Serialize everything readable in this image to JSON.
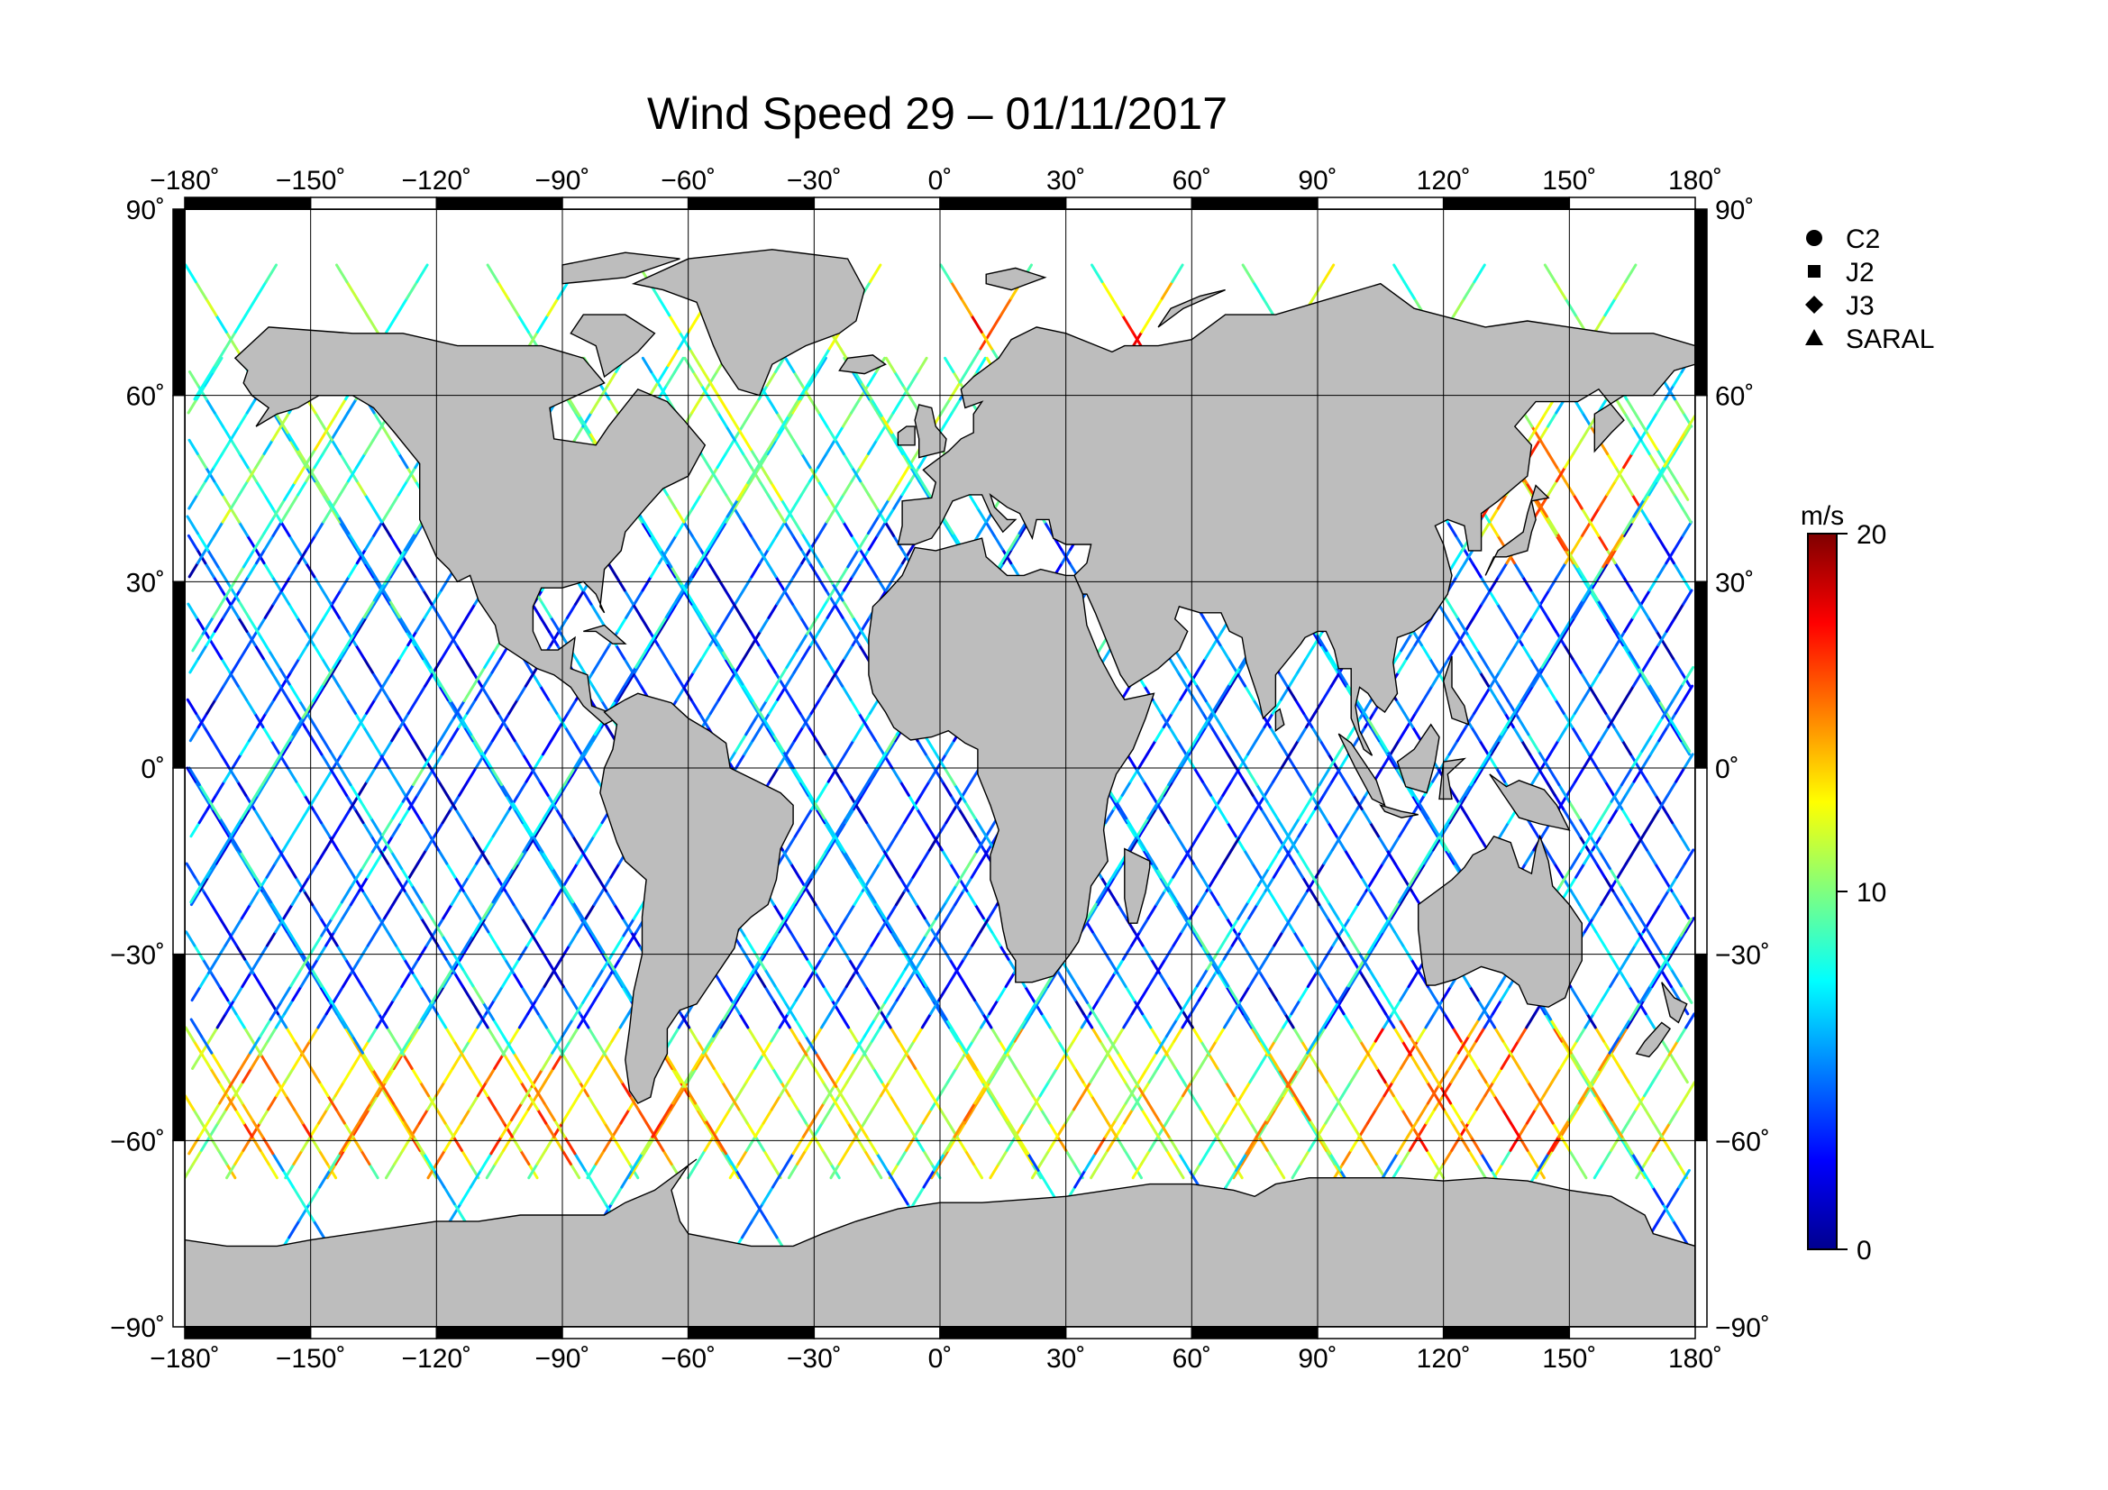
{
  "title": "Wind Speed 29 – 01/11/2017",
  "map": {
    "projection": "equirectangular",
    "lon_range": [
      -180,
      180
    ],
    "lat_range": [
      -90,
      90
    ],
    "lon_ticks": [
      -180,
      -150,
      -120,
      -90,
      -60,
      -30,
      0,
      30,
      60,
      90,
      120,
      150,
      180
    ],
    "lat_ticks": [
      90,
      60,
      30,
      0,
      -30,
      -60,
      -90
    ],
    "lon_tick_labels": [
      "−180˚",
      "−150˚",
      "−120˚",
      "−90˚",
      "−60˚",
      "−30˚",
      "0˚",
      "30˚",
      "60˚",
      "90˚",
      "120˚",
      "150˚",
      "180˚"
    ],
    "lat_tick_labels": [
      "90˚",
      "60˚",
      "30˚",
      "0˚",
      "−30˚",
      "−60˚",
      "−90˚"
    ],
    "grid": true,
    "land_color": "#bdbdbd",
    "frame_color": "#000000"
  },
  "legend": {
    "placement": "top-right",
    "items": [
      {
        "label": "C2",
        "marker": "circle"
      },
      {
        "label": "J2",
        "marker": "square"
      },
      {
        "label": "J3",
        "marker": "diamond"
      },
      {
        "label": "SARAL",
        "marker": "triangle"
      }
    ]
  },
  "colorbar": {
    "unit": "m/s",
    "min": 0,
    "max": 20,
    "tick_values": [
      0,
      10,
      20
    ],
    "tick_labels": [
      "0",
      "10",
      "20"
    ],
    "colormap": [
      "#00008f",
      "#0000ff",
      "#007fff",
      "#00ffff",
      "#7fff7f",
      "#ffff00",
      "#ff7f00",
      "#ff0000",
      "#7f0000"
    ]
  },
  "chart_data": {
    "type": "map-tracks",
    "value_unit": "m/s",
    "tracks_description_note": "",
    "ground_track_families": [
      {
        "lon_start": -180,
        "lon_step": 12,
        "count": 30,
        "lat_max": 66,
        "value_bands": [
          {
            "lat_min": -66,
            "lat_max": -40,
            "speed": 11
          },
          {
            "lat_min": -40,
            "lat_max": 40,
            "speed": 5
          },
          {
            "lat_min": 40,
            "lat_max": 66,
            "speed": 8
          }
        ]
      },
      {
        "lon_start": -174,
        "lon_step": 12,
        "count": 30,
        "lat_max": 66,
        "value_bands": [
          {
            "lat_min": -66,
            "lat_max": -40,
            "speed": 12
          },
          {
            "lat_min": -40,
            "lat_max": 40,
            "speed": 3
          },
          {
            "lat_min": 40,
            "lat_max": 66,
            "speed": 9
          }
        ]
      },
      {
        "lon_start": -168,
        "lon_step": 18,
        "count": 20,
        "lat_max": 81,
        "value_bands": [
          {
            "lat_min": -62,
            "lat_max": -45,
            "speed": 13
          },
          {
            "lat_min": -45,
            "lat_max": 45,
            "speed": 7
          },
          {
            "lat_min": 45,
            "lat_max": 81,
            "speed": 10
          }
        ]
      }
    ],
    "high_wind_regions": [
      {
        "lon": [
          -170,
          -60
        ],
        "lat": [
          -62,
          -45
        ],
        "speed": 14
      },
      {
        "lon": [
          100,
          150
        ],
        "lat": [
          -60,
          -40
        ],
        "speed": 15
      },
      {
        "lon": [
          130,
          165
        ],
        "lat": [
          35,
          55
        ],
        "speed": 14
      },
      {
        "lon": [
          0,
          60
        ],
        "lat": [
          68,
          80
        ],
        "speed": 15
      }
    ]
  }
}
